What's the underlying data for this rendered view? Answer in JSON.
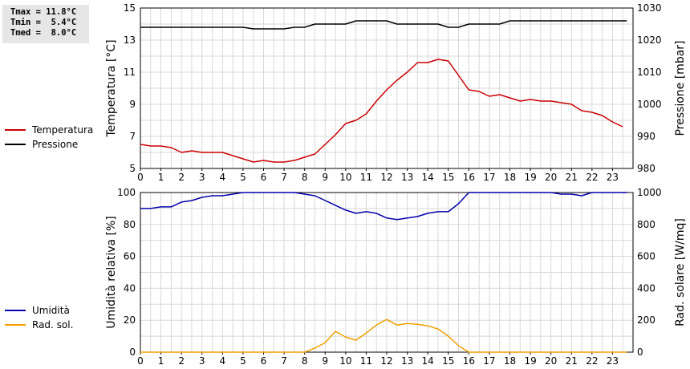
{
  "stats": {
    "lines": [
      "Tmax = 11.8°C",
      "Tmin =  5.4°C",
      "Tmed =  8.0°C"
    ]
  },
  "legend_top": [
    {
      "label": "Temperatura",
      "color": "#cc0000"
    },
    {
      "label": "Pressione",
      "color": "#000000"
    }
  ],
  "legend_bottom": [
    {
      "label": "Umidità",
      "color": "#0000aa"
    },
    {
      "label": "Rad. sol.",
      "color": "#f0a000"
    }
  ],
  "chart_data": [
    {
      "type": "line",
      "xlabel": "",
      "ylabel": "Temperatura [°C]",
      "y2label": "Pressione [mbar]",
      "xlim": [
        0,
        24
      ],
      "ylim": [
        5,
        15
      ],
      "y2lim": [
        980,
        1030
      ],
      "x_ticks": [
        0,
        1,
        2,
        3,
        4,
        5,
        6,
        7,
        8,
        9,
        10,
        11,
        12,
        13,
        14,
        15,
        16,
        17,
        18,
        19,
        20,
        21,
        22,
        23
      ],
      "y_ticks": [
        5,
        7,
        9,
        11,
        13,
        15
      ],
      "y2_ticks": [
        980,
        990,
        1000,
        1010,
        1020,
        1030
      ],
      "grid": true,
      "series": [
        {
          "name": "Temperatura",
          "axis": "left",
          "color": "#cc0000",
          "points": [
            [
              0,
              6.5
            ],
            [
              0.5,
              6.4
            ],
            [
              1,
              6.4
            ],
            [
              1.5,
              6.3
            ],
            [
              2,
              6.0
            ],
            [
              2.5,
              6.1
            ],
            [
              3,
              6.0
            ],
            [
              3.5,
              6.0
            ],
            [
              4,
              6.0
            ],
            [
              4.5,
              5.8
            ],
            [
              5,
              5.6
            ],
            [
              5.5,
              5.4
            ],
            [
              6,
              5.5
            ],
            [
              6.5,
              5.4
            ],
            [
              7,
              5.4
            ],
            [
              7.5,
              5.5
            ],
            [
              8,
              5.7
            ],
            [
              8.5,
              5.9
            ],
            [
              9,
              6.5
            ],
            [
              9.5,
              7.1
            ],
            [
              10,
              7.8
            ],
            [
              10.5,
              8.0
            ],
            [
              11,
              8.4
            ],
            [
              11.5,
              9.2
            ],
            [
              12,
              9.9
            ],
            [
              12.5,
              10.5
            ],
            [
              13,
              11.0
            ],
            [
              13.5,
              11.6
            ],
            [
              14,
              11.6
            ],
            [
              14.5,
              11.8
            ],
            [
              15,
              11.7
            ],
            [
              15.5,
              10.8
            ],
            [
              16,
              9.9
            ],
            [
              16.5,
              9.8
            ],
            [
              17,
              9.5
            ],
            [
              17.5,
              9.6
            ],
            [
              18,
              9.4
            ],
            [
              18.5,
              9.2
            ],
            [
              19,
              9.3
            ],
            [
              19.5,
              9.2
            ],
            [
              20,
              9.2
            ],
            [
              20.5,
              9.1
            ],
            [
              21,
              9.0
            ],
            [
              21.5,
              8.6
            ],
            [
              22,
              8.5
            ],
            [
              22.5,
              8.3
            ],
            [
              23,
              7.9
            ],
            [
              23.5,
              7.6
            ]
          ]
        },
        {
          "name": "Pressione",
          "axis": "right",
          "color": "#000000",
          "points": [
            [
              0,
              1024
            ],
            [
              5,
              1024
            ],
            [
              5.5,
              1023.5
            ],
            [
              7,
              1023.5
            ],
            [
              7.5,
              1024
            ],
            [
              8,
              1024
            ],
            [
              8.5,
              1025
            ],
            [
              10,
              1025
            ],
            [
              10.5,
              1026
            ],
            [
              12,
              1026
            ],
            [
              12.5,
              1025
            ],
            [
              14.5,
              1025
            ],
            [
              15,
              1024
            ],
            [
              15.5,
              1024
            ],
            [
              16,
              1025
            ],
            [
              17.5,
              1025
            ],
            [
              18,
              1026
            ],
            [
              23.7,
              1026
            ]
          ]
        }
      ]
    },
    {
      "type": "line",
      "xlabel": "",
      "ylabel": "Umidità relativa [%]",
      "y2label": "Rad. solare [W/mq]",
      "xlim": [
        0,
        24
      ],
      "ylim": [
        0,
        100
      ],
      "y2lim": [
        0,
        1000
      ],
      "x_ticks": [
        0,
        1,
        2,
        3,
        4,
        5,
        6,
        7,
        8,
        9,
        10,
        11,
        12,
        13,
        14,
        15,
        16,
        17,
        18,
        19,
        20,
        21,
        22,
        23
      ],
      "y_ticks": [
        0,
        20,
        40,
        60,
        80,
        100
      ],
      "y2_ticks": [
        0,
        200,
        400,
        600,
        800,
        1000
      ],
      "grid": true,
      "series": [
        {
          "name": "Umidità",
          "axis": "left",
          "color": "#0000aa",
          "points": [
            [
              0,
              90
            ],
            [
              0.5,
              90
            ],
            [
              1,
              91
            ],
            [
              1.5,
              91
            ],
            [
              2,
              94
            ],
            [
              2.5,
              95
            ],
            [
              3,
              97
            ],
            [
              3.5,
              98
            ],
            [
              4,
              98
            ],
            [
              4.5,
              99
            ],
            [
              5,
              100
            ],
            [
              7.5,
              100
            ],
            [
              8,
              99
            ],
            [
              8.5,
              98
            ],
            [
              9,
              95
            ],
            [
              9.5,
              92
            ],
            [
              10,
              89
            ],
            [
              10.5,
              87
            ],
            [
              11,
              88
            ],
            [
              11.5,
              87
            ],
            [
              12,
              84
            ],
            [
              12.5,
              83
            ],
            [
              13,
              84
            ],
            [
              13.5,
              85
            ],
            [
              14,
              87
            ],
            [
              14.5,
              88
            ],
            [
              15,
              88
            ],
            [
              15.5,
              93
            ],
            [
              16,
              100
            ],
            [
              20,
              100
            ],
            [
              20.5,
              99
            ],
            [
              21,
              99
            ],
            [
              21.5,
              98
            ],
            [
              22,
              100
            ],
            [
              23.7,
              100
            ]
          ]
        },
        {
          "name": "Rad. sol.",
          "axis": "right",
          "color": "#f0a000",
          "points": [
            [
              0,
              0
            ],
            [
              8,
              0
            ],
            [
              8.5,
              25
            ],
            [
              9,
              60
            ],
            [
              9.5,
              130
            ],
            [
              10,
              95
            ],
            [
              10.5,
              75
            ],
            [
              11,
              120
            ],
            [
              11.5,
              170
            ],
            [
              12,
              205
            ],
            [
              12.5,
              170
            ],
            [
              13,
              180
            ],
            [
              13.5,
              175
            ],
            [
              14,
              165
            ],
            [
              14.5,
              145
            ],
            [
              15,
              100
            ],
            [
              15.5,
              40
            ],
            [
              16,
              0
            ],
            [
              23.7,
              0
            ]
          ]
        }
      ]
    }
  ]
}
